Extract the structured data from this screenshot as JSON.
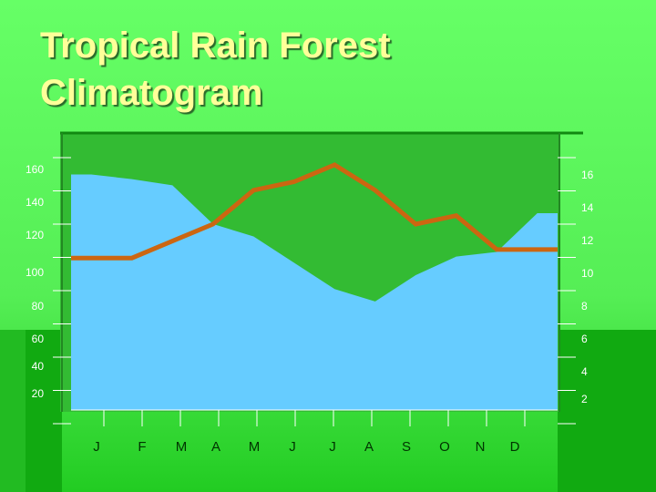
{
  "slide": {
    "title_line1": "Tropical Rain Forest",
    "title_line2": "Climatogram"
  },
  "colors": {
    "background": "#66ff66",
    "title": "#ffff99",
    "precip_fill": "#66ccff",
    "temp_line": "#cc6611",
    "chart_bg": "#33bb33"
  },
  "chart_data": {
    "type": "area",
    "title": "",
    "categories": [
      "J",
      "F",
      "M",
      "A",
      "M",
      "J",
      "J",
      "A",
      "S",
      "O",
      "N",
      "D"
    ],
    "left_axis": {
      "ticks": [
        20,
        40,
        60,
        80,
        100,
        120,
        140,
        160
      ]
    },
    "right_axis": {
      "ticks": [
        2,
        4,
        6,
        8,
        10,
        12,
        14,
        16
      ]
    },
    "grid": false,
    "series": [
      {
        "values": [
          175,
          172,
          168,
          143,
          135,
          118,
          101,
          93,
          110,
          122,
          125,
          150
        ],
        "axis": "left",
        "style": "area"
      },
      {
        "values": [
          10,
          10,
          11,
          12,
          14,
          14.5,
          15.5,
          14,
          12,
          12.5,
          10.5,
          10.5
        ],
        "axis": "right",
        "style": "line"
      }
    ]
  }
}
